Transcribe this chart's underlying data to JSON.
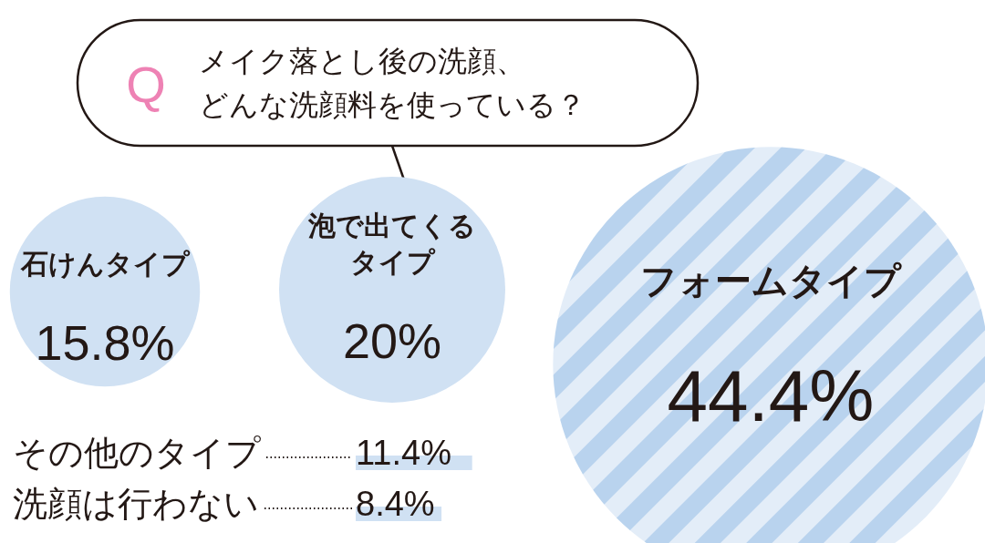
{
  "chart_data": {
    "type": "other",
    "title": "メイク落とし後の洗顔、どんな洗顔料を使っている？",
    "annotations": [
      "Q"
    ],
    "categories": [
      "石けんタイプ",
      "泡で出てくるタイプ",
      "フォームタイプ",
      "その他のタイプ",
      "洗顔は行わない"
    ],
    "values": [
      15.8,
      20,
      44.4,
      11.4,
      8.4
    ],
    "value_labels": [
      "15.8%",
      "20%",
      "44.4%",
      "11.4%",
      "8.4%"
    ],
    "colors": [
      "#d0e1f3",
      "#d0e1f3",
      "#b9d3ee",
      "#d0e1f3",
      "#d0e1f3"
    ]
  }
}
